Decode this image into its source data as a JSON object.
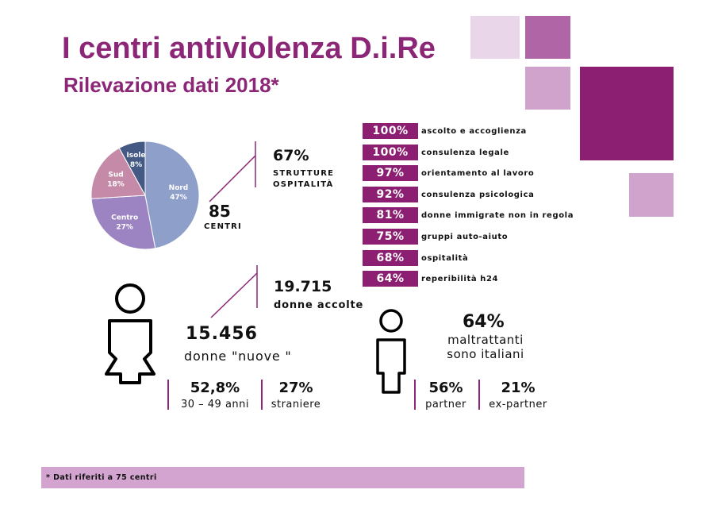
{
  "header": {
    "title": "I centri antiviolenza D.i.Re",
    "subtitle": "Rilevazione dati 2018*"
  },
  "colors": {
    "brand": "#8c2677",
    "bar": "#8c1f72",
    "pie_nord": "#8e9fc9",
    "pie_centro": "#9b84c1",
    "pie_sud": "#c48aa7",
    "pie_isole": "#445a84"
  },
  "chart_data": {
    "type": "pie",
    "slices": [
      {
        "label": "Nord",
        "value": 47,
        "value_label": "47%"
      },
      {
        "label": "Centro",
        "value": 27,
        "value_label": "27%"
      },
      {
        "label": "Sud",
        "value": 18,
        "value_label": "18%"
      },
      {
        "label": "Isole",
        "value": 8,
        "value_label": "8%"
      }
    ]
  },
  "centers": {
    "count": "85",
    "label": "CENTRI"
  },
  "hospitality": {
    "pct": "67%",
    "line1": "STRUTTURE",
    "line2": "OSPITALITÀ"
  },
  "services": [
    {
      "pct": "100%",
      "label": "ascolto e accoglienza"
    },
    {
      "pct": "100%",
      "label": "consulenza legale"
    },
    {
      "pct": "97%",
      "label": "orientamento al lavoro"
    },
    {
      "pct": "92%",
      "label": "consulenza psicologica"
    },
    {
      "pct": "81%",
      "label": "donne immigrate non in regola"
    },
    {
      "pct": "75%",
      "label": "gruppi auto-aiuto"
    },
    {
      "pct": "68%",
      "label": "ospitalità"
    },
    {
      "pct": "64%",
      "label": "reperibilità h24"
    }
  ],
  "women": {
    "total": "19.715",
    "total_label": "donne accolte",
    "new_count": "15.456",
    "new_label": "donne \"nuove \"",
    "age_pct": "52,8%",
    "age_label": "30 – 49 anni",
    "foreign_pct": "27%",
    "foreign_label": "straniere"
  },
  "abusers": {
    "pct": "64%",
    "line1": "maltrattanti",
    "line2": "sono italiani",
    "partner_pct": "56%",
    "partner_label": "partner",
    "expartner_pct": "21%",
    "expartner_label": "ex-partner"
  },
  "footnote": "* Dati riferiti a 75 centri"
}
